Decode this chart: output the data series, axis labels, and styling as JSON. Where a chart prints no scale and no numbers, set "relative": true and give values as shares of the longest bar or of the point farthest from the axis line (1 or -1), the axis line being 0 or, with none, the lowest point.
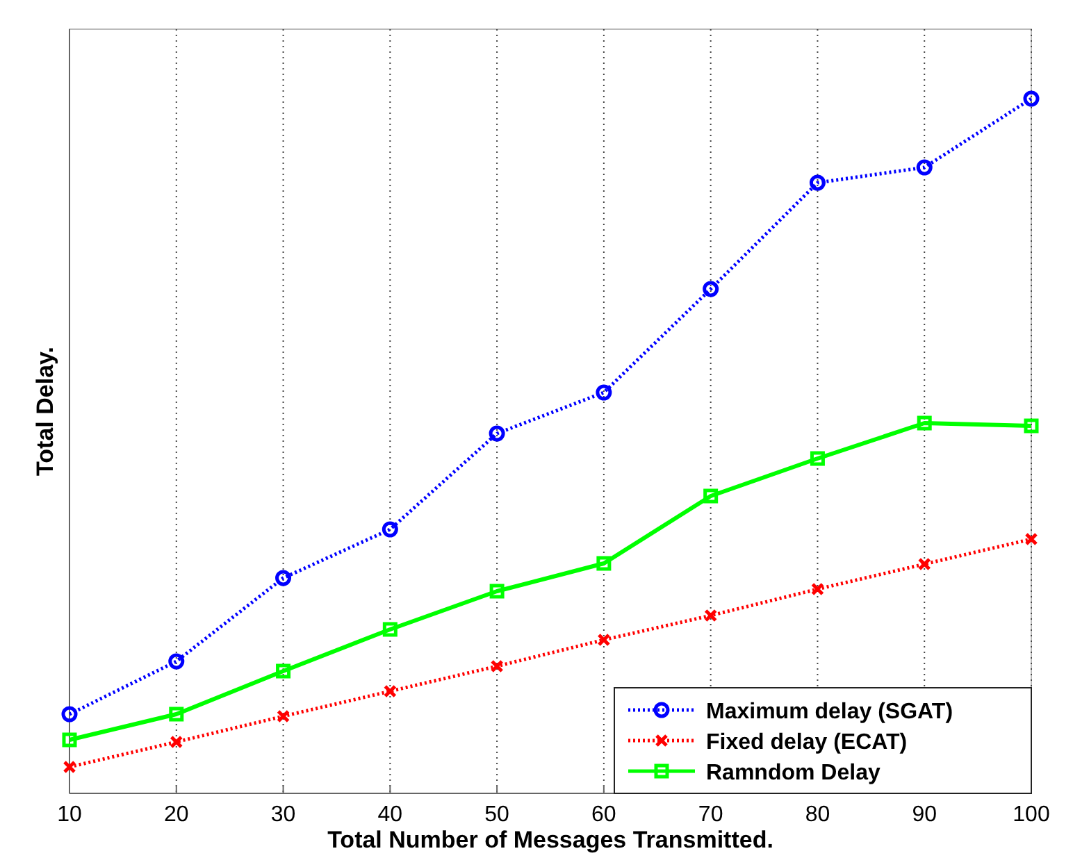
{
  "chart_data": {
    "type": "line",
    "relative": true,
    "xlabel": "Total Number of Messages Transmitted.",
    "ylabel": "Total Delay.",
    "x": [
      10,
      20,
      30,
      40,
      50,
      60,
      70,
      80,
      90,
      100
    ],
    "xlim": [
      10,
      100
    ],
    "xticks": [
      10,
      20,
      30,
      40,
      50,
      60,
      70,
      80,
      90,
      100
    ],
    "grid": "x",
    "legend": "bottom right",
    "series": [
      {
        "name": "Maximum delay (SGAT)",
        "color": "#0000ff",
        "marker": "circle",
        "line_style": "dotted",
        "values": [
          0.114,
          0.19,
          0.31,
          0.38,
          0.518,
          0.577,
          0.726,
          0.879,
          0.901,
          1
        ]
      },
      {
        "name": "Fixed delay (ECAT)",
        "color": "#ff0000",
        "marker": "cross",
        "line_style": "dotted",
        "values": [
          0.038,
          0.074,
          0.111,
          0.147,
          0.183,
          0.221,
          0.256,
          0.294,
          0.33,
          0.366
        ]
      },
      {
        "name": "Ramndom Delay",
        "color": "#00ff00",
        "marker": "square",
        "line_style": "solid",
        "values": [
          0.077,
          0.114,
          0.176,
          0.236,
          0.291,
          0.331,
          0.428,
          0.482,
          0.533,
          0.529
        ]
      }
    ]
  }
}
